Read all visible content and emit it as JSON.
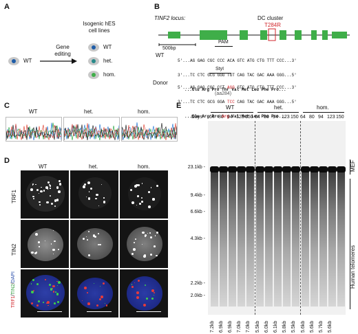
{
  "panels": {
    "a": "A",
    "b": "B",
    "c": "C",
    "d": "D",
    "e": "E"
  },
  "panelA": {
    "header_line1": "Isogenic hES",
    "header_line2": "cell lines",
    "start_cell": "WT",
    "arrow_line1": "Gene",
    "arrow_line2": "editing",
    "outcomes": [
      "WT",
      "het.",
      "hom."
    ]
  },
  "panelB": {
    "locus_label": "TINF2 locus:",
    "cluster_label": "DC cluster",
    "mutation": "T284R",
    "scale_bar": "500bp",
    "pam_label": "PAM",
    "styi_label": "StyI",
    "wt_label": "WT",
    "donor_label": "Donor",
    "wt_top": "5'...AG GAG CGC CCC ACA GTC ATG CTG TTT CCC...3'",
    "wt_bottom": "3'...TC CTC GCG GGG TGT CAG TAC GAC AAA GGG...5'",
    "wt_aa": "...Glu Arg Pro Thr Val Met Leu Phe Pro...",
    "donor_top_a": "5'...AG GAG CGC CCT ",
    "donor_top_red": "AGG",
    "donor_top_b": " GTC ATG CTG TTT CCC...3'",
    "donor_bot_a": "3'...TC CTC GCG GGA ",
    "donor_bot_red": "TCC",
    "donor_bot_b": " CAG TAC GAC AAA GGG...5'",
    "donor_aa_a": "...Glu Arg Pro ",
    "donor_aa_red": "Arg",
    "donor_aa_b": " Val Met Leu Phe Pro...",
    "aa_position": "(aa284)"
  },
  "panelC": {
    "labels": [
      "WT",
      "het.",
      "hom."
    ]
  },
  "panelD": {
    "columns": [
      "WT",
      "het.",
      "hom."
    ],
    "rows": [
      "TRF1",
      "TIN2"
    ],
    "merge_red": "TRF1",
    "merge_green": "TIN2",
    "merge_blue": "DAPI",
    "merge_sep": "/"
  },
  "panelE": {
    "groups": [
      "WT",
      "het.",
      "hom."
    ],
    "days_label": "Days",
    "days": [
      "64",
      "80",
      "94",
      "123",
      "150"
    ],
    "markers": [
      "23.1kb",
      "9.4kb",
      "6.6kb",
      "4.3kb",
      "2.2kb",
      "2.0kb"
    ],
    "mef_label": "MEF",
    "human_label": "Human telomeres",
    "lengths": {
      "wt": [
        "7.2kb",
        "6.9kb",
        "6.9kb",
        "7.0kb",
        "7.0kb"
      ],
      "het": [
        "5.5kb",
        "6.0kb",
        "6.1kb",
        "5.8kb",
        "5.5kb"
      ],
      "hom": [
        "5.6kb",
        "5.6kb",
        "5.7kb",
        "5.6kb"
      ]
    }
  }
}
